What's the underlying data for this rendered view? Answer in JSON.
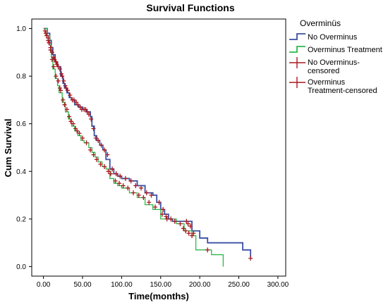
{
  "chart_data": {
    "type": "line",
    "title": "Survival Functions",
    "xlabel": "Time(months)",
    "ylabel": "Cum Survival",
    "xlim": [
      -15,
      310
    ],
    "ylim": [
      -0.04,
      1.04
    ],
    "x_ticks": [
      0,
      50,
      100,
      150,
      200,
      250,
      300
    ],
    "x_tick_labels": [
      "0.00",
      "50.00",
      "100.00",
      "150.00",
      "200.00",
      "250.00",
      "300.00"
    ],
    "y_ticks": [
      0.0,
      0.2,
      0.4,
      0.6,
      0.8,
      1.0
    ],
    "y_tick_labels": [
      "0.0",
      "0.2",
      "0.4",
      "0.6",
      "0.8",
      "1.0"
    ],
    "grid": false,
    "legend": {
      "title": "Overminüs",
      "placement": "right",
      "entries": [
        {
          "lines": [
            "No Overminus"
          ],
          "color": "#3A4FA3",
          "kind": "line"
        },
        {
          "lines": [
            "Overminus Treatment"
          ],
          "color": "#2DB84B",
          "kind": "line"
        },
        {
          "lines": [
            "No Overminus-",
            "censored"
          ],
          "color": "#A8191E",
          "kind": "censor"
        },
        {
          "lines": [
            "Overminus",
            "Treatment-censored"
          ],
          "color": "#A8191E",
          "kind": "censor"
        }
      ]
    },
    "series": [
      {
        "name": "No Overminus",
        "color": "#3A4FA3",
        "kind": "step",
        "x": [
          0,
          5,
          8,
          10,
          12,
          15,
          18,
          22,
          25,
          27,
          30,
          33,
          36,
          40,
          45,
          50,
          55,
          60,
          62,
          65,
          68,
          72,
          76,
          80,
          85,
          90,
          95,
          100,
          110,
          120,
          130,
          140,
          145,
          150,
          155,
          160,
          165,
          170,
          180,
          190,
          200,
          210,
          220,
          250,
          255,
          265
        ],
        "y": [
          1.0,
          0.98,
          0.95,
          0.92,
          0.89,
          0.86,
          0.84,
          0.8,
          0.77,
          0.75,
          0.73,
          0.71,
          0.7,
          0.68,
          0.67,
          0.66,
          0.65,
          0.63,
          0.59,
          0.55,
          0.53,
          0.51,
          0.49,
          0.45,
          0.41,
          0.39,
          0.38,
          0.37,
          0.36,
          0.34,
          0.31,
          0.3,
          0.27,
          0.24,
          0.22,
          0.2,
          0.19,
          0.19,
          0.19,
          0.15,
          0.12,
          0.1,
          0.1,
          0.1,
          0.07,
          0.04
        ]
      },
      {
        "name": "Overminus Treatment",
        "color": "#2DB84B",
        "kind": "step",
        "x": [
          0,
          5,
          8,
          10,
          12,
          15,
          18,
          20,
          24,
          28,
          32,
          36,
          40,
          44,
          48,
          52,
          58,
          62,
          66,
          70,
          75,
          80,
          85,
          90,
          95,
          100,
          110,
          120,
          130,
          140,
          150,
          160,
          170,
          180,
          190,
          195,
          215,
          230
        ],
        "y": [
          1.0,
          0.97,
          0.93,
          0.88,
          0.83,
          0.79,
          0.76,
          0.73,
          0.69,
          0.65,
          0.62,
          0.59,
          0.57,
          0.55,
          0.53,
          0.52,
          0.5,
          0.48,
          0.46,
          0.44,
          0.42,
          0.41,
          0.37,
          0.35,
          0.34,
          0.33,
          0.31,
          0.29,
          0.26,
          0.24,
          0.2,
          0.2,
          0.18,
          0.15,
          0.13,
          0.07,
          0.05,
          0.0
        ]
      },
      {
        "name": "No Overminus-censored",
        "color": "#A8191E",
        "kind": "censor",
        "x": [
          2,
          4,
          6,
          7,
          9,
          11,
          13,
          14,
          16,
          17,
          19,
          21,
          23,
          24,
          26,
          28,
          29,
          31,
          34,
          37,
          39,
          42,
          44,
          47,
          49,
          52,
          54,
          56,
          58,
          61,
          64,
          67,
          70,
          74,
          78,
          82,
          88,
          93,
          98,
          105,
          112,
          118,
          125,
          132,
          138,
          148,
          153,
          157,
          163,
          168,
          183,
          185,
          188,
          192,
          265
        ],
        "y": [
          0.99,
          0.97,
          0.96,
          0.94,
          0.92,
          0.9,
          0.88,
          0.87,
          0.86,
          0.85,
          0.84,
          0.83,
          0.81,
          0.8,
          0.78,
          0.76,
          0.75,
          0.74,
          0.72,
          0.7,
          0.7,
          0.69,
          0.68,
          0.67,
          0.66,
          0.66,
          0.66,
          0.65,
          0.64,
          0.62,
          0.58,
          0.54,
          0.53,
          0.51,
          0.49,
          0.47,
          0.41,
          0.39,
          0.38,
          0.37,
          0.36,
          0.34,
          0.33,
          0.31,
          0.3,
          0.27,
          0.24,
          0.21,
          0.2,
          0.19,
          0.19,
          0.18,
          0.17,
          0.14,
          0.035
        ]
      },
      {
        "name": "Overminus Treatment-censored",
        "color": "#A8191E",
        "kind": "censor",
        "x": [
          3,
          6,
          9,
          11,
          13,
          16,
          19,
          21,
          22,
          25,
          27,
          30,
          33,
          35,
          38,
          41,
          43,
          46,
          50,
          55,
          60,
          64,
          68,
          73,
          78,
          83,
          86,
          92,
          97,
          102,
          108,
          115,
          122,
          128,
          135,
          143,
          152,
          158,
          175,
          179,
          182,
          186,
          190,
          210
        ],
        "y": [
          0.98,
          0.95,
          0.91,
          0.87,
          0.84,
          0.8,
          0.78,
          0.75,
          0.74,
          0.7,
          0.68,
          0.66,
          0.63,
          0.61,
          0.6,
          0.58,
          0.57,
          0.56,
          0.54,
          0.52,
          0.49,
          0.47,
          0.45,
          0.43,
          0.42,
          0.4,
          0.39,
          0.36,
          0.35,
          0.34,
          0.33,
          0.31,
          0.3,
          0.29,
          0.27,
          0.25,
          0.22,
          0.2,
          0.18,
          0.16,
          0.15,
          0.14,
          0.13,
          0.07
        ]
      }
    ]
  }
}
